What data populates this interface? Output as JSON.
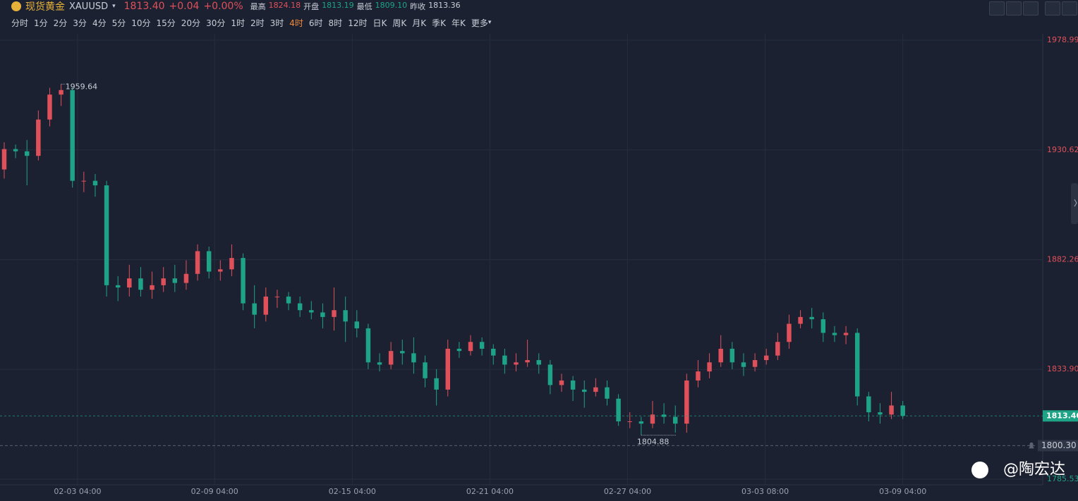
{
  "header": {
    "name": "现货黄金",
    "symbol": "XAUUSD",
    "change": "+0.04",
    "change_pct": "+0.00%",
    "stats": [
      {
        "label": "最高",
        "value": "1824.18"
      },
      {
        "label": "开盘",
        "value": "1813.19"
      },
      {
        "label": "最低",
        "value": "1809.10"
      },
      {
        "label": "昨收",
        "value": "1813.36"
      }
    ],
    "timeframes": [
      "分时",
      "1分",
      "2分",
      "3分",
      "4分",
      "5分",
      "10分",
      "15分",
      "20分",
      "30分",
      "1时",
      "2时",
      "3时",
      "4时",
      "6时",
      "8时",
      "12时",
      "日K",
      "周K",
      "月K",
      "季K",
      "年K",
      "更多"
    ],
    "active_timeframe": 13
  },
  "chart_data": {
    "type": "candlestick",
    "up_color": "#e0505b",
    "down_color": "#1fa386",
    "ohlc": [
      [
        1922,
        1934,
        1918,
        1931
      ],
      [
        1931,
        1933,
        1927,
        1930
      ],
      [
        1930,
        1935,
        1915,
        1928
      ],
      [
        1928,
        1948,
        1926,
        1944
      ],
      [
        1944,
        1958,
        1941,
        1955
      ],
      [
        1955,
        1959.64,
        1950,
        1957
      ],
      [
        1957,
        1958,
        1914,
        1917
      ],
      [
        1917,
        1921,
        1912,
        1917
      ],
      [
        1917,
        1920,
        1910,
        1915
      ],
      [
        1915,
        1917,
        1866,
        1871
      ],
      [
        1871,
        1875,
        1864,
        1870
      ],
      [
        1870,
        1880,
        1866,
        1874
      ],
      [
        1874,
        1879,
        1866,
        1869
      ],
      [
        1869,
        1877,
        1865,
        1871
      ],
      [
        1871,
        1879,
        1868,
        1874
      ],
      [
        1874,
        1880,
        1868,
        1872
      ],
      [
        1872,
        1882,
        1869,
        1876
      ],
      [
        1876,
        1889,
        1873,
        1886
      ],
      [
        1886,
        1888,
        1874,
        1877
      ],
      [
        1877,
        1882,
        1873,
        1878
      ],
      [
        1878,
        1889,
        1875,
        1883
      ],
      [
        1883,
        1885,
        1860,
        1863
      ],
      [
        1863,
        1871,
        1852,
        1858
      ],
      [
        1858,
        1870,
        1855,
        1866
      ],
      [
        1866,
        1869,
        1861,
        1866
      ],
      [
        1866,
        1868,
        1860,
        1863
      ],
      [
        1863,
        1866,
        1857,
        1860
      ],
      [
        1860,
        1864,
        1856,
        1859
      ],
      [
        1859,
        1863,
        1852,
        1857
      ],
      [
        1857,
        1870,
        1851,
        1860
      ],
      [
        1860,
        1866,
        1846,
        1855
      ],
      [
        1855,
        1860,
        1848,
        1852
      ],
      [
        1852,
        1854,
        1834,
        1837
      ],
      [
        1837,
        1841,
        1833,
        1836
      ],
      [
        1836,
        1846,
        1834,
        1842
      ],
      [
        1842,
        1847,
        1836,
        1841
      ],
      [
        1841,
        1848,
        1832,
        1837
      ],
      [
        1837,
        1840,
        1826,
        1830
      ],
      [
        1830,
        1834,
        1818,
        1825
      ],
      [
        1825,
        1847,
        1822,
        1843
      ],
      [
        1843,
        1846,
        1839,
        1842
      ],
      [
        1842,
        1849,
        1840,
        1846
      ],
      [
        1846,
        1848,
        1840,
        1843
      ],
      [
        1843,
        1845,
        1836,
        1840
      ],
      [
        1840,
        1843,
        1832,
        1836
      ],
      [
        1836,
        1841,
        1833,
        1837
      ],
      [
        1837,
        1847,
        1835,
        1838
      ],
      [
        1838,
        1841,
        1832,
        1836
      ],
      [
        1836,
        1838,
        1823,
        1827
      ],
      [
        1827,
        1832,
        1824,
        1829
      ],
      [
        1829,
        1831,
        1820,
        1825
      ],
      [
        1825,
        1829,
        1817,
        1824
      ],
      [
        1824,
        1830,
        1822,
        1826
      ],
      [
        1826,
        1829,
        1818,
        1821
      ],
      [
        1821,
        1823,
        1809,
        1811
      ],
      [
        1811,
        1815,
        1808,
        1811
      ],
      [
        1811,
        1813,
        1804.88,
        1810
      ],
      [
        1810,
        1820,
        1808,
        1814
      ],
      [
        1814,
        1819,
        1810,
        1813
      ],
      [
        1813,
        1818,
        1806,
        1810
      ],
      [
        1810,
        1832,
        1806,
        1829
      ],
      [
        1829,
        1838,
        1826,
        1833
      ],
      [
        1833,
        1841,
        1830,
        1837
      ],
      [
        1837,
        1849,
        1835,
        1843
      ],
      [
        1843,
        1846,
        1834,
        1837
      ],
      [
        1837,
        1841,
        1831,
        1835
      ],
      [
        1835,
        1841,
        1833,
        1838
      ],
      [
        1838,
        1843,
        1836,
        1840
      ],
      [
        1840,
        1850,
        1838,
        1846
      ],
      [
        1846,
        1858,
        1843,
        1854
      ],
      [
        1854,
        1860,
        1852,
        1857
      ],
      [
        1857,
        1861,
        1852,
        1856
      ],
      [
        1856,
        1859,
        1846,
        1850
      ],
      [
        1850,
        1853,
        1846,
        1849
      ],
      [
        1849,
        1853,
        1845,
        1850
      ],
      [
        1850,
        1852,
        1818,
        1822
      ],
      [
        1822,
        1824,
        1811,
        1815
      ],
      [
        1815,
        1819,
        1810,
        1814
      ],
      [
        1814,
        1824,
        1812,
        1818
      ],
      [
        1818,
        1820,
        1812,
        1813.4
      ]
    ],
    "xlim": [
      -0.37,
      91.3
    ],
    "xticks": [
      {
        "value": 6.45,
        "label": "02-03 04:00"
      },
      {
        "value": 18.5,
        "label": "02-09 04:00"
      },
      {
        "value": 30.6,
        "label": "02-15 04:00"
      },
      {
        "value": 42.7,
        "label": "02-21 04:00"
      },
      {
        "value": 54.8,
        "label": "02-27 04:00"
      },
      {
        "value": 66.9,
        "label": "03-03 08:00"
      },
      {
        "value": 79,
        "label": "03-09 04:00"
      }
    ],
    "ylim": [
      1785.53,
      1978.99
    ],
    "yticks": [
      1978.99,
      1930.62,
      1882.26,
      {
        "value": 1833.9,
        "label": "1833.90"
      },
      1785.53
    ],
    "last_price": {
      "value": 1813.4,
      "label": "1813.40"
    },
    "alert_line": {
      "value": 1800.3,
      "label": "1800.30"
    },
    "high_mark": [
      5,
      1
    ],
    "low_mark": [
      56,
      2
    ],
    "grid": true
  },
  "watermark": "@陶宏达"
}
